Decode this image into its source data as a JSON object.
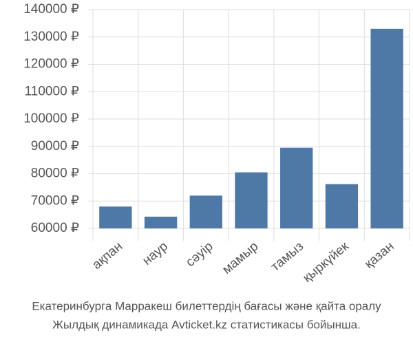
{
  "chart_data": {
    "type": "bar",
    "categories": [
      "ақпан",
      "наур",
      "сәуір",
      "мамыр",
      "тамыз",
      "қыркүйек",
      "қазан"
    ],
    "values": [
      68000,
      64300,
      72000,
      80500,
      89500,
      76200,
      133000
    ],
    "color": "#4e79a7",
    "ylim": [
      60000,
      140000
    ],
    "yticks": [
      {
        "value": 60000,
        "label": "60000 ₽"
      },
      {
        "value": 70000,
        "label": "70000 ₽"
      },
      {
        "value": 80000,
        "label": "80000 ₽"
      },
      {
        "value": 90000,
        "label": "90000 ₽"
      },
      {
        "value": 100000,
        "label": "100000 ₽"
      },
      {
        "value": 110000,
        "label": "110000 ₽"
      },
      {
        "value": 120000,
        "label": "120000 ₽"
      },
      {
        "value": 130000,
        "label": "130000 ₽"
      },
      {
        "value": 140000,
        "label": "140000 ₽"
      }
    ],
    "grid": true,
    "caption": [
      "Екатеринбурга Марракеш билеттердің бағасы және қайта оралу",
      "Жылдық динамикада Avticket.kz статистикасы бойынша."
    ]
  }
}
